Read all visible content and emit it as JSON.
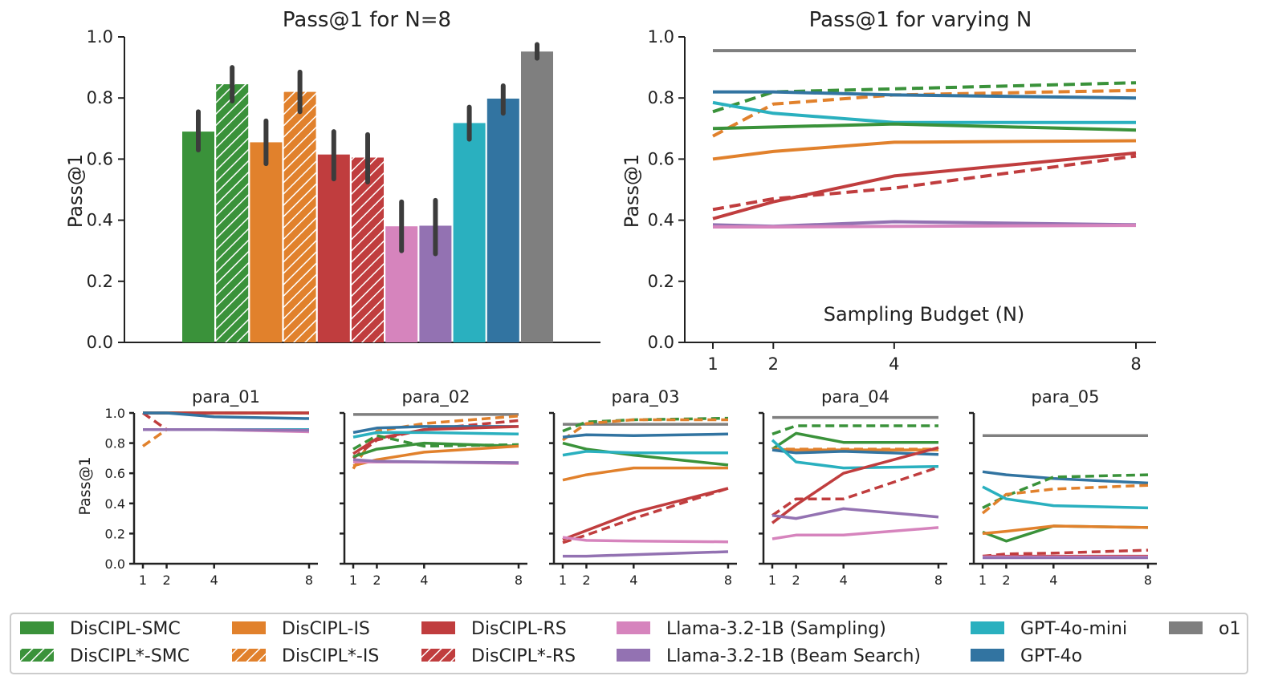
{
  "colors": {
    "smc": "#3a923a",
    "is": "#e1812c",
    "rs": "#c03d3e",
    "sampling": "#d684bd",
    "beam": "#9372b2",
    "mini": "#2ab0bf",
    "gpt4o": "#3274a1",
    "o1": "#7f7f7f"
  },
  "chart_data": [
    {
      "type": "bar",
      "title": "Pass@1 for N=8",
      "xlabel": "",
      "ylabel": "Pass@1",
      "ylim": [
        0.0,
        1.0
      ],
      "yticks": [
        "0.0",
        "0.2",
        "0.4",
        "0.6",
        "0.8",
        "1.0"
      ],
      "bars": [
        {
          "method": "smc",
          "hatched": false,
          "value": 0.69,
          "err": [
            0.63,
            0.755
          ]
        },
        {
          "method": "smc",
          "hatched": true,
          "value": 0.845,
          "err": [
            0.79,
            0.9
          ]
        },
        {
          "method": "is",
          "hatched": false,
          "value": 0.655,
          "err": [
            0.585,
            0.725
          ]
        },
        {
          "method": "is",
          "hatched": true,
          "value": 0.82,
          "err": [
            0.755,
            0.885
          ]
        },
        {
          "method": "rs",
          "hatched": false,
          "value": 0.615,
          "err": [
            0.535,
            0.69
          ]
        },
        {
          "method": "rs",
          "hatched": true,
          "value": 0.605,
          "err": [
            0.525,
            0.68
          ]
        },
        {
          "method": "sampling",
          "hatched": false,
          "value": 0.38,
          "err": [
            0.3,
            0.46
          ]
        },
        {
          "method": "beam",
          "hatched": false,
          "value": 0.382,
          "err": [
            0.29,
            0.465
          ]
        },
        {
          "method": "mini",
          "hatched": false,
          "value": 0.718,
          "err": [
            0.665,
            0.77
          ]
        },
        {
          "method": "gpt4o",
          "hatched": false,
          "value": 0.798,
          "err": [
            0.75,
            0.84
          ]
        },
        {
          "method": "o1",
          "hatched": false,
          "value": 0.952,
          "err": [
            0.93,
            0.975
          ]
        }
      ]
    },
    {
      "type": "line",
      "title": "Pass@1 for varying N",
      "xlabel": "Sampling Budget (N)",
      "ylabel": "Pass@1",
      "x": [
        1,
        2,
        4,
        8
      ],
      "xticks": [
        "1",
        "2",
        "4",
        "8"
      ],
      "ylim": [
        0.0,
        1.0
      ],
      "yticks": [
        "0.0",
        "0.2",
        "0.4",
        "0.6",
        "0.8",
        "1.0"
      ],
      "series": [
        {
          "name": "o1",
          "method": "o1",
          "dashed": false,
          "values": [
            0.955,
            0.955,
            0.955,
            0.955
          ]
        },
        {
          "name": "DisCIPL*-SMC",
          "method": "smc",
          "dashed": true,
          "values": [
            0.755,
            0.82,
            0.83,
            0.85
          ]
        },
        {
          "name": "DisCIPL*-IS",
          "method": "is",
          "dashed": true,
          "values": [
            0.675,
            0.78,
            0.81,
            0.825
          ]
        },
        {
          "name": "GPT-4o",
          "method": "gpt4o",
          "dashed": false,
          "values": [
            0.82,
            0.82,
            0.81,
            0.8
          ]
        },
        {
          "name": "GPT-4o-mini",
          "method": "mini",
          "dashed": false,
          "values": [
            0.785,
            0.75,
            0.72,
            0.72
          ]
        },
        {
          "name": "DisCIPL-SMC",
          "method": "smc",
          "dashed": false,
          "values": [
            0.7,
            0.705,
            0.715,
            0.695
          ]
        },
        {
          "name": "DisCIPL-IS",
          "method": "is",
          "dashed": false,
          "values": [
            0.6,
            0.625,
            0.655,
            0.66
          ]
        },
        {
          "name": "DisCIPL*-RS",
          "method": "rs",
          "dashed": true,
          "values": [
            0.435,
            0.47,
            0.505,
            0.61
          ]
        },
        {
          "name": "DisCIPL-RS",
          "method": "rs",
          "dashed": false,
          "values": [
            0.405,
            0.46,
            0.545,
            0.62
          ]
        },
        {
          "name": "Llama-3.2-1B (Beam Search)",
          "method": "beam",
          "dashed": false,
          "values": [
            0.385,
            0.38,
            0.395,
            0.385
          ]
        },
        {
          "name": "Llama-3.2-1B (Sampling)",
          "method": "sampling",
          "dashed": false,
          "values": [
            0.378,
            0.378,
            0.38,
            0.383
          ]
        }
      ]
    },
    {
      "type": "line",
      "title": "para_01",
      "ylabel": "Pass@1",
      "x": [
        1,
        2,
        4,
        8
      ],
      "xticks": [
        "1",
        "2",
        "4",
        "8"
      ],
      "ylim": [
        0.0,
        1.0
      ],
      "yticks": [
        "0.0",
        "0.2",
        "0.4",
        "0.6",
        "0.8",
        "1.0"
      ],
      "series": [
        {
          "method": "o1",
          "dashed": false,
          "values": [
            1.0,
            1.0,
            1.0,
            1.0
          ]
        },
        {
          "method": "smc",
          "dashed": false,
          "values": [
            1.0,
            1.0,
            1.0,
            1.0
          ]
        },
        {
          "method": "smc",
          "dashed": true,
          "values": [
            1.0,
            1.0,
            1.0,
            1.0
          ]
        },
        {
          "method": "is",
          "dashed": false,
          "values": [
            1.0,
            1.0,
            1.0,
            1.0
          ]
        },
        {
          "method": "is",
          "dashed": true,
          "values": [
            0.78,
            0.89,
            0.89,
            0.89
          ]
        },
        {
          "method": "rs",
          "dashed": false,
          "values": [
            1.0,
            1.0,
            1.0,
            1.0
          ]
        },
        {
          "method": "rs",
          "dashed": true,
          "values": [
            1.0,
            0.89,
            0.89,
            0.89
          ]
        },
        {
          "method": "gpt4o",
          "dashed": false,
          "values": [
            1.0,
            1.0,
            0.975,
            0.963
          ]
        },
        {
          "method": "mini",
          "dashed": false,
          "values": [
            0.89,
            0.89,
            0.89,
            0.89
          ]
        },
        {
          "method": "sampling",
          "dashed": false,
          "values": [
            0.89,
            0.89,
            0.89,
            0.875
          ]
        },
        {
          "method": "beam",
          "dashed": false,
          "values": [
            0.89,
            0.89,
            0.89,
            0.885
          ]
        }
      ]
    },
    {
      "type": "line",
      "title": "para_02",
      "x": [
        1,
        2,
        4,
        8
      ],
      "xticks": [
        "1",
        "2",
        "4",
        "8"
      ],
      "ylim": [
        0.0,
        1.0
      ],
      "series": [
        {
          "method": "o1",
          "dashed": false,
          "values": [
            0.99,
            0.99,
            0.99,
            0.99
          ]
        },
        {
          "method": "is",
          "dashed": true,
          "values": [
            0.63,
            0.88,
            0.93,
            0.98
          ]
        },
        {
          "method": "rs",
          "dashed": true,
          "values": [
            0.7,
            0.82,
            0.89,
            0.95
          ]
        },
        {
          "method": "gpt4o",
          "dashed": false,
          "values": [
            0.87,
            0.9,
            0.91,
            0.91
          ]
        },
        {
          "method": "rs",
          "dashed": false,
          "values": [
            0.73,
            0.83,
            0.89,
            0.91
          ]
        },
        {
          "method": "smc",
          "dashed": true,
          "values": [
            0.76,
            0.85,
            0.78,
            0.79
          ]
        },
        {
          "method": "mini",
          "dashed": false,
          "values": [
            0.84,
            0.87,
            0.87,
            0.86
          ]
        },
        {
          "method": "smc",
          "dashed": false,
          "values": [
            0.71,
            0.76,
            0.8,
            0.78
          ]
        },
        {
          "method": "is",
          "dashed": false,
          "values": [
            0.65,
            0.69,
            0.74,
            0.78
          ]
        },
        {
          "method": "sampling",
          "dashed": false,
          "values": [
            0.675,
            0.675,
            0.675,
            0.665
          ]
        },
        {
          "method": "beam",
          "dashed": false,
          "values": [
            0.69,
            0.68,
            0.675,
            0.67
          ]
        }
      ]
    },
    {
      "type": "line",
      "title": "para_03",
      "x": [
        1,
        2,
        4,
        8
      ],
      "xticks": [
        "1",
        "2",
        "4",
        "8"
      ],
      "ylim": [
        0.0,
        1.0
      ],
      "series": [
        {
          "method": "o1",
          "dashed": false,
          "values": [
            0.925,
            0.925,
            0.925,
            0.925
          ]
        },
        {
          "method": "smc",
          "dashed": true,
          "values": [
            0.88,
            0.94,
            0.955,
            0.965
          ]
        },
        {
          "method": "is",
          "dashed": true,
          "values": [
            0.82,
            0.93,
            0.955,
            0.955
          ]
        },
        {
          "method": "gpt4o",
          "dashed": false,
          "values": [
            0.84,
            0.855,
            0.85,
            0.86
          ]
        },
        {
          "method": "smc",
          "dashed": false,
          "values": [
            0.8,
            0.76,
            0.72,
            0.655
          ]
        },
        {
          "method": "mini",
          "dashed": false,
          "values": [
            0.72,
            0.745,
            0.735,
            0.735
          ]
        },
        {
          "method": "is",
          "dashed": false,
          "values": [
            0.555,
            0.59,
            0.635,
            0.635
          ]
        },
        {
          "method": "rs",
          "dashed": false,
          "values": [
            0.16,
            0.22,
            0.34,
            0.5
          ]
        },
        {
          "method": "rs",
          "dashed": true,
          "values": [
            0.14,
            0.19,
            0.3,
            0.5
          ]
        },
        {
          "method": "sampling",
          "dashed": false,
          "values": [
            0.175,
            0.155,
            0.15,
            0.145
          ]
        },
        {
          "method": "beam",
          "dashed": false,
          "values": [
            0.05,
            0.05,
            0.06,
            0.08
          ]
        }
      ]
    },
    {
      "type": "line",
      "title": "para_04",
      "x": [
        1,
        2,
        4,
        8
      ],
      "xticks": [
        "1",
        "2",
        "4",
        "8"
      ],
      "ylim": [
        0.0,
        1.0
      ],
      "series": [
        {
          "method": "o1",
          "dashed": false,
          "values": [
            0.97,
            0.97,
            0.97,
            0.97
          ]
        },
        {
          "method": "smc",
          "dashed": true,
          "values": [
            0.86,
            0.915,
            0.915,
            0.915
          ]
        },
        {
          "method": "smc",
          "dashed": false,
          "values": [
            0.76,
            0.865,
            0.805,
            0.805
          ]
        },
        {
          "method": "is",
          "dashed": false,
          "values": [
            0.76,
            0.755,
            0.755,
            0.755
          ]
        },
        {
          "method": "is",
          "dashed": true,
          "values": [
            0.76,
            0.76,
            0.76,
            0.76
          ]
        },
        {
          "method": "gpt4o",
          "dashed": false,
          "values": [
            0.755,
            0.735,
            0.745,
            0.725
          ]
        },
        {
          "method": "mini",
          "dashed": false,
          "values": [
            0.82,
            0.675,
            0.635,
            0.645
          ]
        },
        {
          "method": "rs",
          "dashed": false,
          "values": [
            0.27,
            0.39,
            0.6,
            0.77
          ]
        },
        {
          "method": "rs",
          "dashed": true,
          "values": [
            0.32,
            0.43,
            0.43,
            0.64
          ]
        },
        {
          "method": "beam",
          "dashed": false,
          "values": [
            0.32,
            0.3,
            0.365,
            0.31
          ]
        },
        {
          "method": "sampling",
          "dashed": false,
          "values": [
            0.165,
            0.19,
            0.19,
            0.24
          ]
        }
      ]
    },
    {
      "type": "line",
      "title": "para_05",
      "x": [
        1,
        2,
        4,
        8
      ],
      "xticks": [
        "1",
        "2",
        "4",
        "8"
      ],
      "ylim": [
        0.0,
        1.0
      ],
      "series": [
        {
          "method": "o1",
          "dashed": false,
          "values": [
            0.85,
            0.85,
            0.85,
            0.85
          ]
        },
        {
          "method": "gpt4o",
          "dashed": false,
          "values": [
            0.61,
            0.59,
            0.565,
            0.535
          ]
        },
        {
          "method": "smc",
          "dashed": true,
          "values": [
            0.37,
            0.45,
            0.575,
            0.59
          ]
        },
        {
          "method": "is",
          "dashed": true,
          "values": [
            0.335,
            0.46,
            0.495,
            0.52
          ]
        },
        {
          "method": "mini",
          "dashed": false,
          "values": [
            0.51,
            0.43,
            0.385,
            0.37
          ]
        },
        {
          "method": "smc",
          "dashed": false,
          "values": [
            0.21,
            0.15,
            0.25,
            0.24
          ]
        },
        {
          "method": "is",
          "dashed": false,
          "values": [
            0.2,
            0.215,
            0.25,
            0.24
          ]
        },
        {
          "method": "rs",
          "dashed": true,
          "values": [
            0.05,
            0.065,
            0.07,
            0.09
          ]
        },
        {
          "method": "rs",
          "dashed": false,
          "values": [
            0.05,
            0.05,
            0.05,
            0.05
          ]
        },
        {
          "method": "sampling",
          "dashed": false,
          "values": [
            0.045,
            0.045,
            0.045,
            0.045
          ]
        },
        {
          "method": "beam",
          "dashed": false,
          "values": [
            0.04,
            0.04,
            0.04,
            0.04
          ]
        }
      ]
    }
  ],
  "legend": {
    "placement": "bottom",
    "entries": [
      {
        "label": "DisCIPL-SMC",
        "method": "smc",
        "hatched": false
      },
      {
        "label": "DisCIPL*-SMC",
        "method": "smc",
        "hatched": true
      },
      {
        "label": "DisCIPL-IS",
        "method": "is",
        "hatched": false
      },
      {
        "label": "DisCIPL*-IS",
        "method": "is",
        "hatched": true
      },
      {
        "label": "DisCIPL-RS",
        "method": "rs",
        "hatched": false
      },
      {
        "label": "DisCIPL*-RS",
        "method": "rs",
        "hatched": true
      },
      {
        "label": "Llama-3.2-1B (Sampling)",
        "method": "sampling",
        "hatched": false
      },
      {
        "label": "Llama-3.2-1B (Beam Search)",
        "method": "beam",
        "hatched": false
      },
      {
        "label": "GPT-4o-mini",
        "method": "mini",
        "hatched": false
      },
      {
        "label": "GPT-4o",
        "method": "gpt4o",
        "hatched": false
      },
      {
        "label": "o1",
        "method": "o1",
        "hatched": false
      }
    ]
  }
}
